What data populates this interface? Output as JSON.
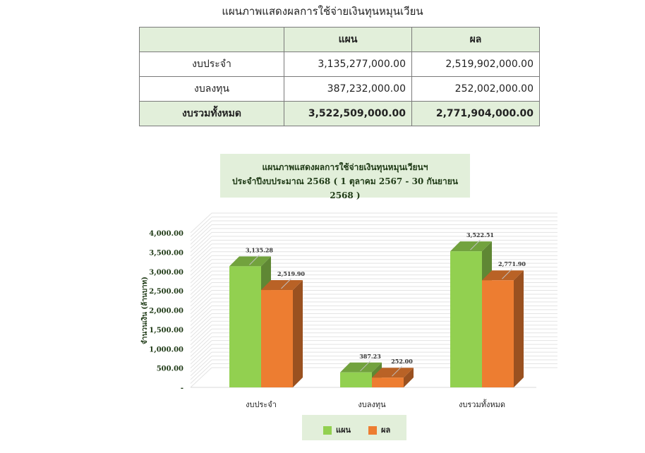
{
  "page_title": "แผนภาพแสดงผลการใช้จ่ายเงินทุนหมุนเวียน",
  "table": {
    "headers": [
      "",
      "แผน",
      "ผล"
    ],
    "rows": [
      {
        "label": "งบประจำ",
        "plan": "3,135,277,000.00",
        "result": "2,519,902,000.00"
      },
      {
        "label": "งบลงทุน",
        "plan": "387,232,000.00",
        "result": "252,002,000.00"
      },
      {
        "label": "งบรวมทั้งหมด",
        "plan": "3,522,509,000.00",
        "result": "2,771,904,000.00"
      }
    ]
  },
  "chart_data": {
    "type": "bar",
    "title": "แผนภาพแสดงผลการใช้จ่ายเงินทุนหมุนเวียนฯ",
    "subtitle": "ประจำปีงบประมาณ 2568 ( 1 ตุลาคม 2567 - 30 กันยายน 2568 )",
    "ylabel": "จำนวนเงิน (ล้านบาท)",
    "ylim": [
      0,
      4000
    ],
    "yticks": [
      "-",
      "500.00",
      "1,000.00",
      "1,500.00",
      "2,000.00",
      "2,500.00",
      "3,000.00",
      "3,500.00",
      "4,000.00"
    ],
    "categories": [
      "งบประจำ",
      "งบลงทุน",
      "งบรวมทั้งหมด"
    ],
    "series": [
      {
        "name": "แผน",
        "color": "#92d050",
        "values": [
          3135.28,
          387.23,
          3522.51
        ],
        "labels": [
          "3,135.28",
          "387.23",
          "3,522.51"
        ]
      },
      {
        "name": "ผล",
        "color": "#ed7d31",
        "values": [
          2519.9,
          252.0,
          2771.9
        ],
        "labels": [
          "2,519.90",
          "252.00",
          "2,771.90"
        ]
      }
    ],
    "grid": true,
    "legend": "bottom"
  }
}
